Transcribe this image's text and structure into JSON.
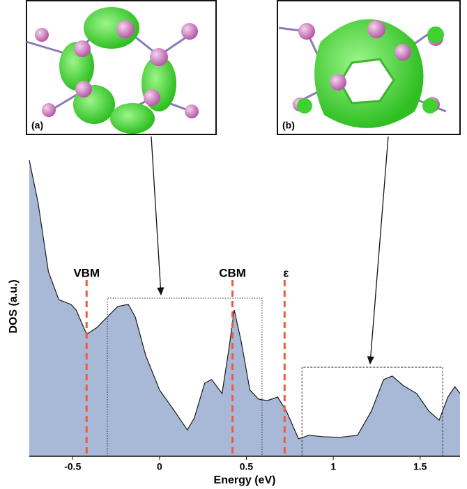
{
  "chart_data": {
    "type": "area",
    "xlabel": "Energy (eV)",
    "ylabel": "DOS (a.u.)",
    "color": "#a7b9d6",
    "line_color": "#1a1a1a",
    "x": [
      -0.75,
      -0.7,
      -0.64,
      -0.58,
      -0.51,
      -0.48,
      -0.42,
      -0.36,
      -0.3,
      -0.24,
      -0.18,
      -0.14,
      -0.08,
      0.0,
      0.08,
      0.16,
      0.2,
      0.26,
      0.3,
      0.36,
      0.4,
      0.43,
      0.47,
      0.52,
      0.57,
      0.62,
      0.68,
      0.73,
      0.8,
      0.86,
      0.94,
      1.04,
      1.14,
      1.22,
      1.29,
      1.34,
      1.4,
      1.48,
      1.55,
      1.61,
      1.66,
      1.7,
      1.73
    ],
    "values": [
      100,
      85.9,
      62.4,
      52.9,
      51.3,
      49.4,
      41.2,
      43.5,
      47.1,
      50.6,
      51.3,
      47.1,
      34.1,
      22.4,
      15.8,
      8.9,
      12.9,
      24.7,
      25.9,
      21.2,
      36.5,
      49.4,
      38.8,
      22.4,
      19.3,
      18.8,
      20.0,
      15.3,
      5.9,
      7.1,
      6.6,
      6.4,
      7.1,
      15.3,
      25.9,
      27.1,
      24.0,
      21.2,
      15.3,
      12.2,
      20.0,
      23.5,
      21.2
    ],
    "xlim": [
      -0.75,
      1.73
    ],
    "ylim": [
      0,
      100
    ],
    "xticks": [
      -0.5,
      0,
      0.5,
      1,
      1.5
    ],
    "markers": [
      {
        "label": "VBM",
        "x": -0.42,
        "color": "#f05a3c"
      },
      {
        "label": "CBM",
        "x": 0.42,
        "color": "#f05a3c"
      },
      {
        "label": "ε",
        "x": 0.72,
        "color": "#f05a3c"
      }
    ],
    "regions": [
      {
        "label": "(a)",
        "x0": -0.3,
        "x1": 0.59,
        "top": 53.4
      },
      {
        "label": "(b)",
        "x0": 0.82,
        "x1": 1.63,
        "top": 30.1
      }
    ]
  }
}
